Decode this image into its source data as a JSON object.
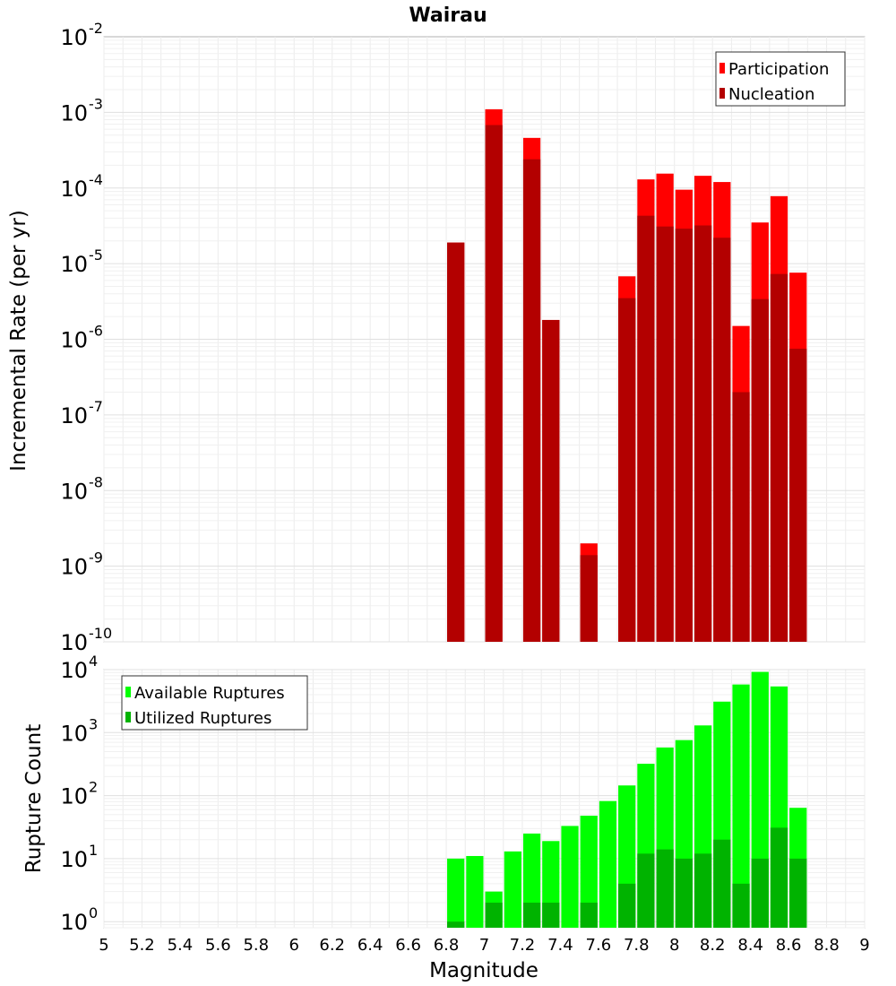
{
  "chart_data": [
    {
      "type": "bar",
      "title": "Wairau",
      "xlabel": "",
      "ylabel": "Incremental Rate (per yr)",
      "yscale": "log",
      "ylim": [
        1e-10,
        0.01
      ],
      "xlim": [
        5,
        9
      ],
      "grid": true,
      "legend_position": "top-right",
      "x": [
        6.85,
        7.05,
        7.25,
        7.35,
        7.55,
        7.75,
        7.85,
        7.95,
        8.05,
        8.15,
        8.25,
        8.35,
        8.45,
        8.55,
        8.65
      ],
      "series": [
        {
          "name": "Participation",
          "color": "#ff0000",
          "values": [
            1.9e-05,
            0.0011,
            0.00046,
            1.8e-06,
            2e-09,
            6.8e-06,
            0.00013,
            0.000155,
            9.5e-05,
            0.000145,
            0.00012,
            1.5e-06,
            3.5e-05,
            7.8e-05,
            7.6e-06
          ]
        },
        {
          "name": "Nucleation",
          "color": "#b30000",
          "values": [
            1.9e-05,
            0.00068,
            0.00024,
            1.8e-06,
            1.4e-09,
            3.5e-06,
            4.3e-05,
            3.1e-05,
            2.9e-05,
            3.2e-05,
            2.2e-05,
            2e-07,
            3.4e-06,
            7.3e-06,
            7.5e-07
          ]
        }
      ]
    },
    {
      "type": "bar",
      "title": "",
      "xlabel": "Magnitude",
      "ylabel": "Rupture Count",
      "yscale": "log",
      "ylim": [
        0.8,
        10000
      ],
      "xlim": [
        5,
        9
      ],
      "grid": true,
      "legend_position": "top-left",
      "x": [
        6.85,
        6.95,
        7.05,
        7.15,
        7.25,
        7.35,
        7.45,
        7.55,
        7.65,
        7.75,
        7.85,
        7.95,
        8.05,
        8.15,
        8.25,
        8.35,
        8.45,
        8.55,
        8.65
      ],
      "series": [
        {
          "name": "Available Ruptures",
          "color": "#00ff00",
          "values": [
            10,
            11,
            3,
            13,
            25,
            19,
            33,
            48,
            82,
            145,
            320,
            580,
            760,
            1300,
            3100,
            5800,
            9200,
            5400,
            64
          ]
        },
        {
          "name": "Utilized Ruptures",
          "color": "#00b300",
          "values": [
            1,
            0,
            2,
            0,
            2,
            2,
            0,
            2,
            0,
            4,
            12,
            14,
            10,
            12,
            20,
            4,
            10,
            31,
            10
          ]
        }
      ]
    }
  ],
  "ticks": {
    "x": [
      "5",
      "5.2",
      "5.4",
      "5.6",
      "5.8",
      "6",
      "6.2",
      "6.4",
      "6.6",
      "6.8",
      "7",
      "7.2",
      "7.4",
      "7.6",
      "7.8",
      "8",
      "8.2",
      "8.4",
      "8.6",
      "8.8",
      "9"
    ],
    "top_y": [
      "10",
      "10",
      "10",
      "10",
      "10",
      "10",
      "10",
      "10",
      "10"
    ],
    "top_y_exp": [
      "-10",
      "-9",
      "-8",
      "-7",
      "-6",
      "-5",
      "-4",
      "-3",
      "-2"
    ],
    "bottom_y": [
      "10",
      "10",
      "10",
      "10",
      "10"
    ],
    "bottom_y_exp": [
      "0",
      "1",
      "2",
      "3",
      "4"
    ]
  }
}
